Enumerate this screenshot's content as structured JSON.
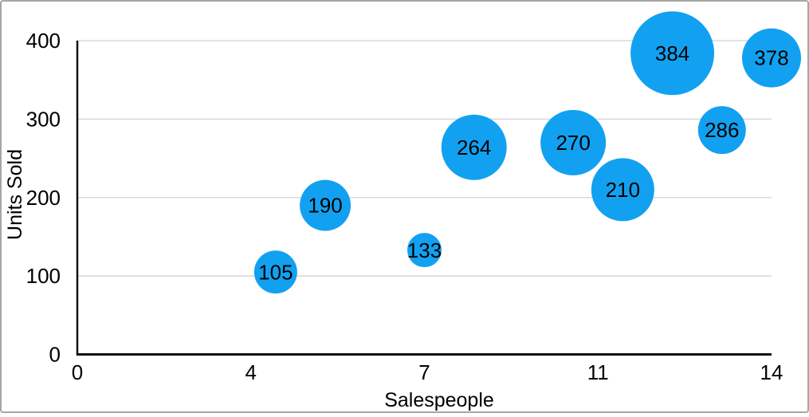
{
  "chart_data": {
    "type": "bubble",
    "title": "",
    "xlabel": "Salespeople",
    "ylabel": "Units Sold",
    "xlim": [
      0,
      14
    ],
    "ylim": [
      0,
      400
    ],
    "x_tick_labels": [
      "0",
      "4",
      "7",
      "11",
      "14"
    ],
    "y_tick_labels": [
      "0",
      "100",
      "200",
      "300",
      "400"
    ],
    "y_tick_values": [
      0,
      100,
      200,
      300,
      400
    ],
    "grid": "horizontal",
    "legend": "none",
    "points": [
      {
        "x": 4,
        "units_sold": 105,
        "label": "105",
        "radius_px": 27
      },
      {
        "x": 5,
        "units_sold": 190,
        "label": "190",
        "radius_px": 32
      },
      {
        "x": 7,
        "units_sold": 133,
        "label": "133",
        "radius_px": 21.5
      },
      {
        "x": 8,
        "units_sold": 264,
        "label": "264",
        "radius_px": 41
      },
      {
        "x": 10,
        "units_sold": 270,
        "label": "270",
        "radius_px": 41
      },
      {
        "x": 11,
        "units_sold": 210,
        "label": "210",
        "radius_px": 39.5
      },
      {
        "x": 12,
        "units_sold": 384,
        "label": "384",
        "radius_px": 52.5
      },
      {
        "x": 13,
        "units_sold": 286,
        "label": "286",
        "radius_px": 30
      },
      {
        "x": 14,
        "units_sold": 378,
        "label": "378",
        "radius_px": 37
      }
    ],
    "colors": {
      "bubble": "#12A1F0",
      "bubble_label": "#000000",
      "gridline": "#D8D8D8",
      "axis": "#111111",
      "tick_text": "#000000",
      "background": "#FFFFFF",
      "frame_border": "#A6A6A6"
    }
  }
}
